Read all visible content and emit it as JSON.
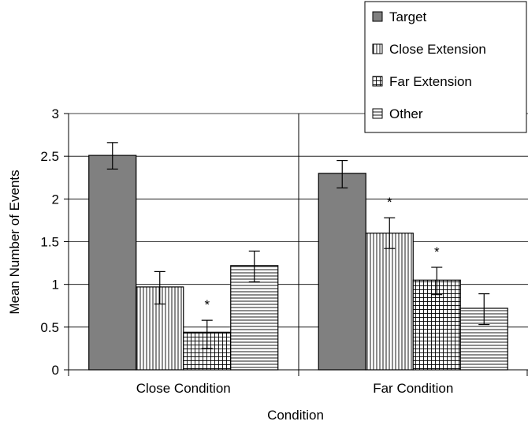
{
  "chart_data": {
    "type": "bar",
    "title": "",
    "xlabel": "Condition",
    "ylabel": "Mean Number of Events",
    "ylim": [
      0,
      3
    ],
    "yticks": [
      "0",
      "0.5",
      "1",
      "1.5",
      "2",
      "2.5",
      "3"
    ],
    "ytick_values": [
      0,
      0.5,
      1,
      1.5,
      2,
      2.5,
      3
    ],
    "grid": true,
    "legend_position": "top-right",
    "categories": [
      "Close Condition",
      "Far Condition"
    ],
    "series": [
      {
        "name": "Target",
        "pattern": "solid",
        "color": "#808080",
        "values": [
          2.51,
          2.3
        ],
        "err_low": [
          2.35,
          2.13
        ],
        "err_high": [
          2.66,
          2.45
        ],
        "sig": [
          false,
          false
        ]
      },
      {
        "name": "Close Extension",
        "pattern": "vertical",
        "color": "#ffffff",
        "values": [
          0.97,
          1.6
        ],
        "err_low": [
          0.77,
          1.42
        ],
        "err_high": [
          1.15,
          1.78
        ],
        "sig": [
          false,
          true
        ]
      },
      {
        "name": "Far Extension",
        "pattern": "grid",
        "color": "#ffffff",
        "values": [
          0.44,
          1.05
        ],
        "err_low": [
          0.25,
          0.88
        ],
        "err_high": [
          0.58,
          1.2
        ],
        "sig": [
          true,
          true
        ]
      },
      {
        "name": "Other",
        "pattern": "horizontal",
        "color": "#ffffff",
        "values": [
          1.22,
          0.72
        ],
        "err_low": [
          1.03,
          0.53
        ],
        "err_high": [
          1.39,
          0.89
        ],
        "sig": [
          false,
          false
        ]
      }
    ],
    "significance_marker": "*"
  }
}
